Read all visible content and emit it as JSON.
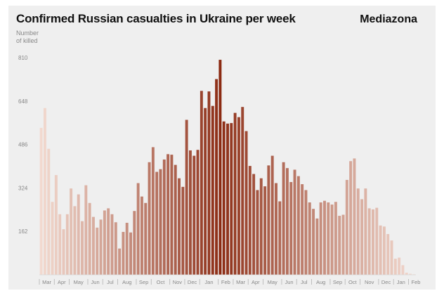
{
  "chart_data": {
    "type": "bar",
    "title": "Confirmed Russian casualties in Ukraine per week",
    "source": "Mediazona",
    "ylabel_lines": [
      "Number",
      "of killed"
    ],
    "xlabel": "",
    "ylim": [
      0,
      810
    ],
    "yticks": [
      162,
      324,
      486,
      648,
      810
    ],
    "grid": false,
    "series": [
      {
        "name": "Number of killed",
        "values": [
          548,
          622,
          470,
          272,
          372,
          226,
          170,
          226,
          322,
          256,
          300,
          200,
          334,
          268,
          216,
          176,
          206,
          240,
          248,
          226,
          196,
          98,
          160,
          194,
          158,
          238,
          342,
          292,
          268,
          420,
          476,
          384,
          394,
          430,
          450,
          448,
          410,
          360,
          328,
          578,
          464,
          444,
          466,
          686,
          622,
          684,
          630,
          730,
          802,
          572,
          564,
          566,
          604,
          588,
          626,
          536,
          406,
          376,
          316,
          360,
          330,
          408,
          444,
          342,
          274,
          420,
          398,
          346,
          392,
          368,
          338,
          316,
          270,
          246,
          210,
          270,
          276,
          270,
          262,
          272,
          220,
          224,
          354,
          424,
          434,
          322,
          282,
          322,
          248,
          244,
          250,
          184,
          180,
          152,
          128,
          60,
          64,
          36,
          8,
          4,
          2
        ]
      }
    ],
    "month_labels": [
      "Mar",
      "Apr",
      "May",
      "Jun",
      "Jul",
      "Aug",
      "Sep",
      "Oct",
      "Nov",
      "Dec",
      "Jan",
      "Feb",
      "Mar",
      "Apr",
      "May",
      "Jun",
      "Jul",
      "Aug",
      "Sep",
      "Oct",
      "Nov",
      "Dec",
      "Jan",
      "Feb"
    ],
    "month_start_weeks": [
      0,
      4,
      8,
      13,
      17,
      21,
      26,
      30,
      35,
      39,
      43,
      48,
      52,
      56,
      60,
      65,
      69,
      73,
      78,
      82,
      86,
      91,
      95,
      99
    ],
    "peak_week_index": 48,
    "colors": {
      "background": "#efefef",
      "peak": "#8b2a12",
      "light": "#f2d9cf",
      "tick_text": "#888888"
    }
  }
}
